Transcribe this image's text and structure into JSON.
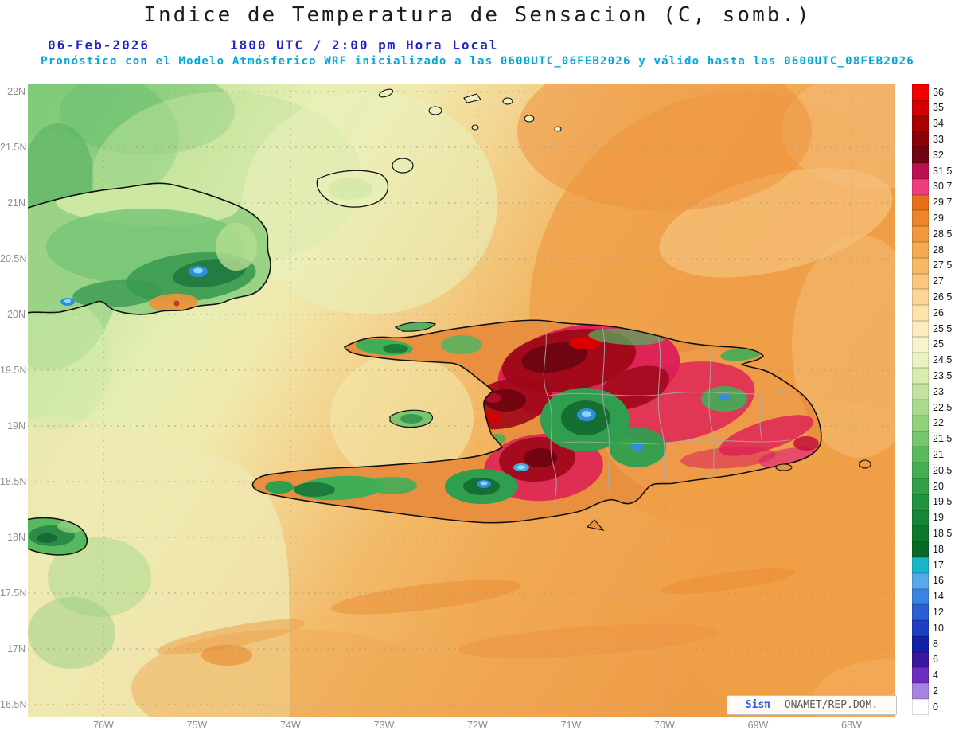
{
  "title": "Indice de Temperatura de Sensacion (C, somb.)",
  "header": {
    "date": "06-Feb-2026",
    "time_line": "1800 UTC / 2:00 pm Hora Local",
    "forecast_line": "Pronóstico con el Modelo Atmósferico WRF inicializado a las 0600UTC_06FEB2026 y válido hasta las  0600UTC_08FEB2026"
  },
  "axes": {
    "lat_labels": [
      "22N",
      "21.5N",
      "21N",
      "20.5N",
      "20N",
      "19.5N",
      "19N",
      "18.5N",
      "18N",
      "17.5N",
      "17N",
      "16.5N"
    ],
    "lon_labels": [
      "76W",
      "75W",
      "74W",
      "73W",
      "72W",
      "71W",
      "70W",
      "69W",
      "68W"
    ]
  },
  "legend": {
    "units": "C",
    "items": [
      {
        "value": "36",
        "color": "#f20000"
      },
      {
        "value": "35",
        "color": "#d20000"
      },
      {
        "value": "34",
        "color": "#aa0000"
      },
      {
        "value": "33",
        "color": "#880008"
      },
      {
        "value": "32",
        "color": "#6e0512"
      },
      {
        "value": "31.5",
        "color": "#bb1150"
      },
      {
        "value": "30.7",
        "color": "#ee3d7a"
      },
      {
        "value": "29.7",
        "color": "#e87118"
      },
      {
        "value": "29",
        "color": "#f08428"
      },
      {
        "value": "28.5",
        "color": "#f2983c"
      },
      {
        "value": "28",
        "color": "#f5a950"
      },
      {
        "value": "27.5",
        "color": "#f7b966"
      },
      {
        "value": "27",
        "color": "#f9c87e"
      },
      {
        "value": "26.5",
        "color": "#fbd696"
      },
      {
        "value": "26",
        "color": "#fce3ac"
      },
      {
        "value": "25.5",
        "color": "#fbedc0"
      },
      {
        "value": "25",
        "color": "#f7f3cc"
      },
      {
        "value": "24.5",
        "color": "#ebf2c2"
      },
      {
        "value": "23.5",
        "color": "#d8edb0"
      },
      {
        "value": "23",
        "color": "#c2e49e"
      },
      {
        "value": "22.5",
        "color": "#aadb8c"
      },
      {
        "value": "22",
        "color": "#90d17c"
      },
      {
        "value": "21.5",
        "color": "#76c66c"
      },
      {
        "value": "21",
        "color": "#5cba5e"
      },
      {
        "value": "20.5",
        "color": "#44ae52"
      },
      {
        "value": "20",
        "color": "#30a148"
      },
      {
        "value": "19.5",
        "color": "#22933e"
      },
      {
        "value": "19",
        "color": "#168536"
      },
      {
        "value": "18.5",
        "color": "#0e772e"
      },
      {
        "value": "18",
        "color": "#086828"
      },
      {
        "value": "17",
        "color": "#1ab6c8"
      },
      {
        "value": "16",
        "color": "#58a8ec"
      },
      {
        "value": "14",
        "color": "#3c84e4"
      },
      {
        "value": "12",
        "color": "#2a60d4"
      },
      {
        "value": "10",
        "color": "#1c40c0"
      },
      {
        "value": "8",
        "color": "#1220a8"
      },
      {
        "value": "6",
        "color": "#3c16a0"
      },
      {
        "value": "4",
        "color": "#6e2cc0"
      },
      {
        "value": "2",
        "color": "#a884e0"
      },
      {
        "value": "0",
        "color": "#ffffff"
      }
    ]
  },
  "watermark": {
    "brand": "Sisπ",
    "credit": "— ONAMET/REP.DOM."
  }
}
